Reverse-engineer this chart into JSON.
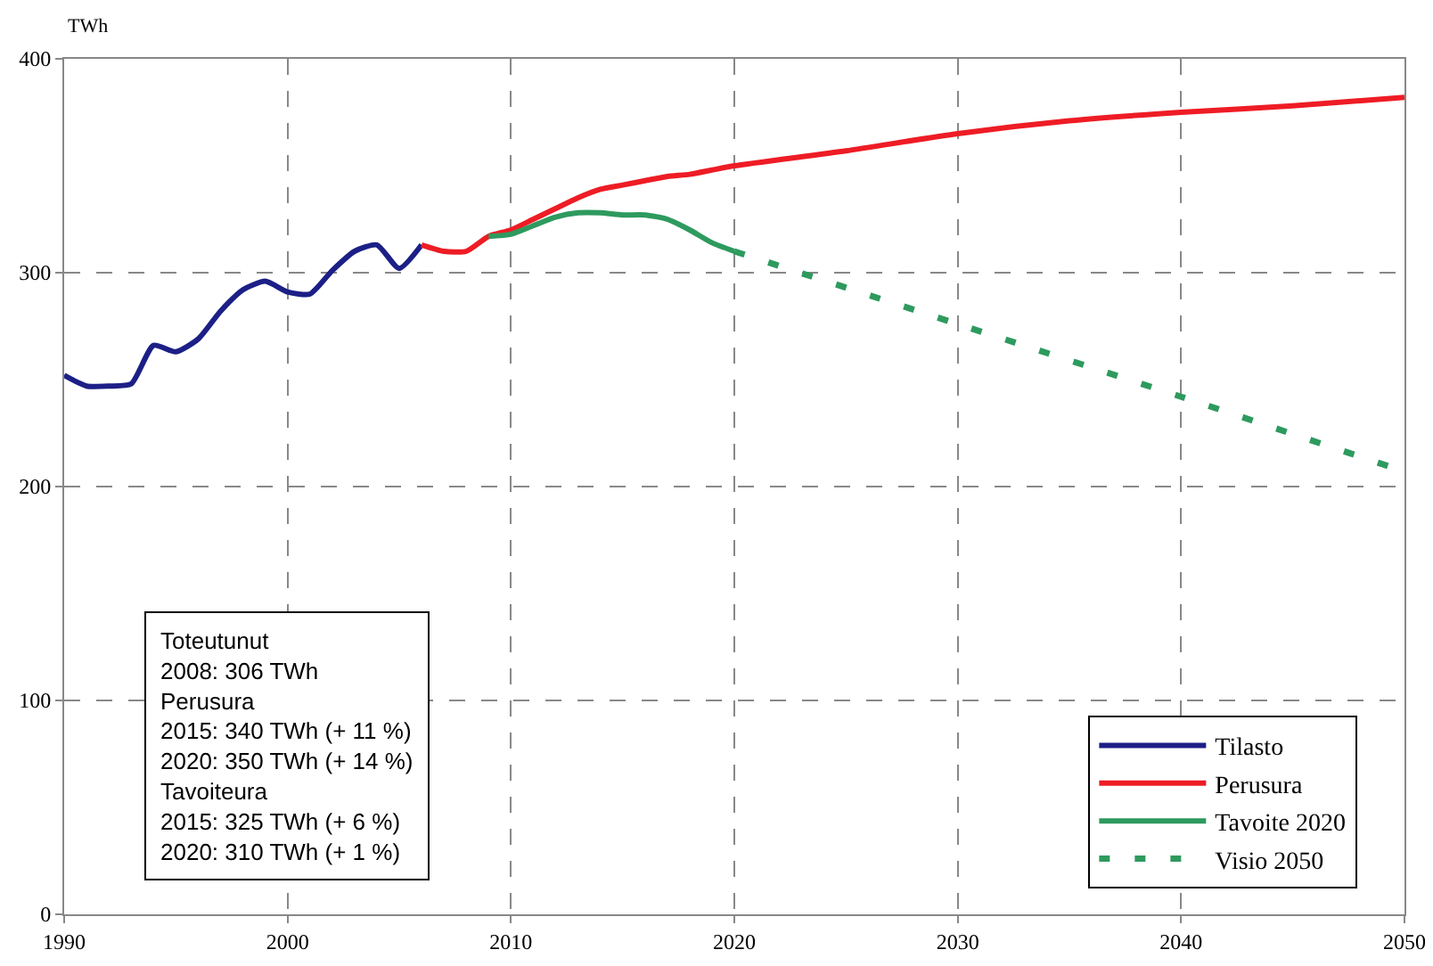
{
  "chart_data": {
    "type": "line",
    "ylabel": "TWh",
    "xlim": [
      1990,
      2050
    ],
    "xticks": [
      1990,
      2000,
      2010,
      2020,
      2030,
      2040,
      2050
    ],
    "ylim": [
      0,
      400
    ],
    "yticks": [
      0,
      100,
      200,
      300,
      400
    ],
    "grid": true,
    "legend": "bottom right",
    "marker": "none",
    "annotations": [
      "Toteutunut",
      "2008: 306 TWh",
      "Perusura",
      "2015: 340 TWh (+ 11 %)",
      "2020: 350 TWh (+ 14 %)",
      "Tavoiteura",
      "2015: 325 TWh (+ 6 %)",
      "2020: 310 TWh (+ 1 %)"
    ],
    "series": [
      {
        "name": "Tilasto",
        "color": "#1c1f86",
        "line_style": "solid",
        "x": [
          1990,
          1991,
          1992,
          1993,
          1994,
          1995,
          1996,
          1997,
          1998,
          1999,
          2000,
          2001,
          2002,
          2003,
          2004,
          2005,
          2006
        ],
        "values": [
          252,
          247,
          247,
          248,
          266,
          263,
          269,
          282,
          292,
          296,
          291,
          290,
          301,
          310,
          313,
          302,
          313
        ]
      },
      {
        "name": "Perusura",
        "color": "#ee1c25",
        "line_style": "solid",
        "x": [
          2006,
          2007,
          2008,
          2009,
          2010,
          2011,
          2012,
          2013,
          2014,
          2015,
          2016,
          2017,
          2018,
          2019,
          2020,
          2025,
          2030,
          2035,
          2040,
          2045,
          2050
        ],
        "values": [
          313,
          310,
          310,
          317,
          320,
          325,
          330,
          335,
          339,
          341,
          343,
          345,
          346,
          348,
          350,
          357,
          365,
          371,
          375,
          378,
          382
        ]
      },
      {
        "name": "Tavoite 2020",
        "color": "#2e9a5e",
        "line_style": "solid",
        "x": [
          2009,
          2010,
          2011,
          2012,
          2013,
          2014,
          2015,
          2016,
          2017,
          2018,
          2019,
          2020
        ],
        "values": [
          317,
          318,
          322,
          326,
          328,
          328,
          327,
          327,
          325,
          320,
          314,
          310
        ]
      },
      {
        "name": "Visio 2050",
        "color": "#2e9a5e",
        "line_style": "dotted",
        "x": [
          2020,
          2030,
          2040,
          2050
        ],
        "values": [
          310,
          276,
          242,
          207
        ]
      }
    ]
  }
}
